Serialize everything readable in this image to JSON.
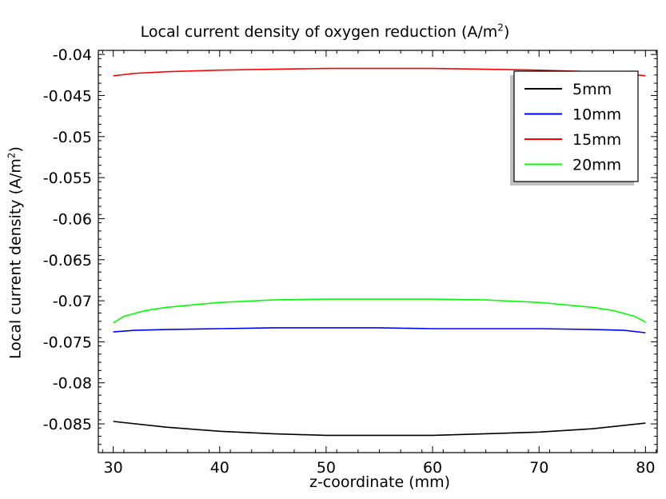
{
  "chart_data": {
    "type": "line",
    "title": "Local current density of oxygen reduction (A/m",
    "title_sup": "2",
    "title_end": ")",
    "xlabel": "z-coordinate (mm)",
    "ylabel": "Local current density (A/m",
    "ylabel_sup": "2",
    "ylabel_end": ")",
    "xlim": [
      28.6,
      81.1
    ],
    "ylim": [
      -0.0885,
      -0.0395
    ],
    "xticks": [
      30,
      40,
      50,
      60,
      70,
      80
    ],
    "yticks": [
      -0.04,
      -0.045,
      -0.05,
      -0.055,
      -0.06,
      -0.065,
      -0.07,
      -0.075,
      -0.08,
      -0.085
    ],
    "grid": false,
    "legend": "top-right",
    "series": [
      {
        "name": "5mm",
        "color": "#000000",
        "x": [
          30,
          35,
          40,
          45,
          50,
          55,
          60,
          65,
          70,
          75,
          80
        ],
        "y": [
          -0.0847,
          -0.0854,
          -0.0859,
          -0.0862,
          -0.0864,
          -0.0864,
          -0.0864,
          -0.0862,
          -0.086,
          -0.0856,
          -0.0849
        ]
      },
      {
        "name": "10mm",
        "color": "#0000ff",
        "x": [
          30,
          32,
          35,
          40,
          45,
          50,
          55,
          60,
          65,
          70,
          75,
          78,
          80
        ],
        "y": [
          -0.0738,
          -0.0736,
          -0.0735,
          -0.0734,
          -0.0733,
          -0.0733,
          -0.0733,
          -0.0734,
          -0.0734,
          -0.0734,
          -0.0735,
          -0.0736,
          -0.0739
        ]
      },
      {
        "name": "15mm",
        "color": "#ff0000",
        "x": [
          30,
          32,
          35,
          40,
          45,
          50,
          55,
          60,
          65,
          70,
          75,
          78,
          80
        ],
        "y": [
          -0.0426,
          -0.0423,
          -0.0421,
          -0.0419,
          -0.0418,
          -0.0417,
          -0.0417,
          -0.0417,
          -0.0418,
          -0.0419,
          -0.0421,
          -0.0423,
          -0.0426
        ]
      },
      {
        "name": "20mm",
        "color": "#00ff00",
        "x": [
          30,
          31,
          33,
          35,
          40,
          45,
          50,
          55,
          60,
          65,
          70,
          75,
          77,
          79,
          80
        ],
        "y": [
          -0.0727,
          -0.0719,
          -0.0712,
          -0.0708,
          -0.0702,
          -0.0699,
          -0.0698,
          -0.0698,
          -0.0698,
          -0.0699,
          -0.0702,
          -0.0708,
          -0.0712,
          -0.0719,
          -0.0726
        ]
      }
    ]
  }
}
